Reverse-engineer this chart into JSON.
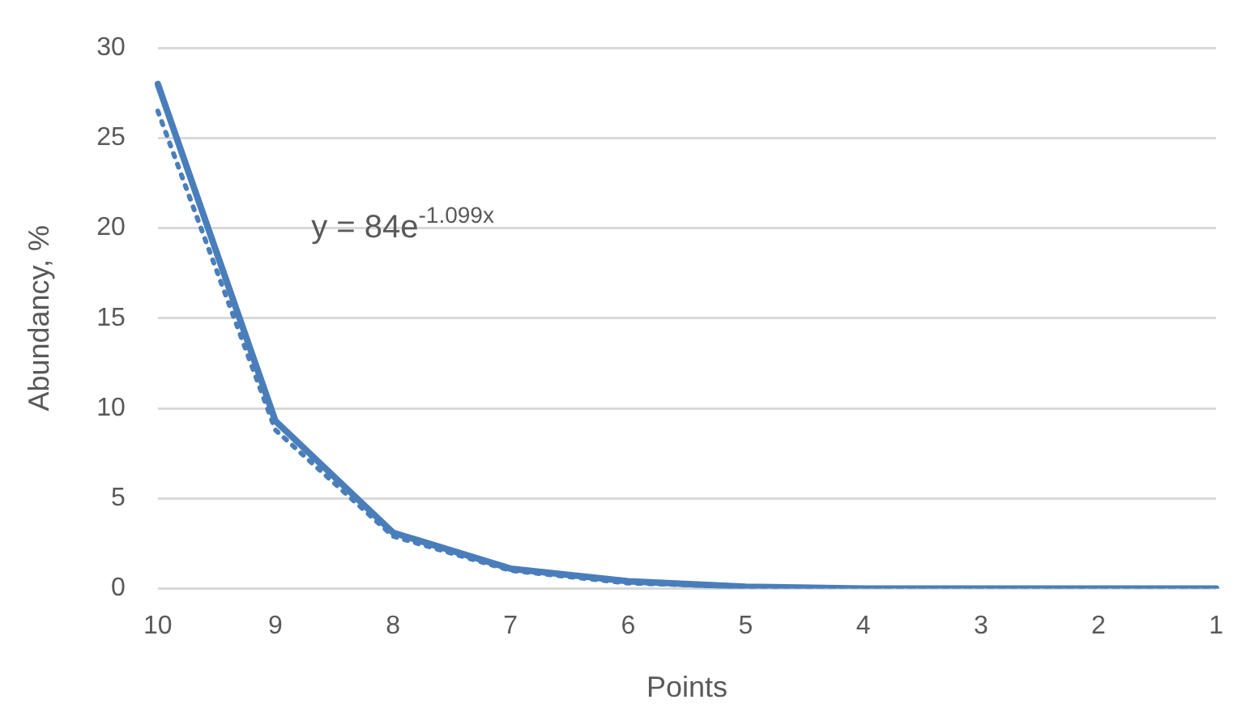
{
  "chart_data": {
    "type": "line",
    "xlabel": "Points",
    "ylabel": "Abundancy, %",
    "categories": [
      "10",
      "9",
      "8",
      "7",
      "6",
      "5",
      "4",
      "3",
      "2",
      "1"
    ],
    "series": [
      {
        "color": "#4a7ebb",
        "values": [
          28,
          9.3,
          3.1,
          1.1,
          0.4,
          0.1,
          0,
          0,
          0,
          0
        ],
        "line_style": "solid"
      },
      {
        "type": "line",
        "color": "#4a7ebb",
        "values": [
          26.5,
          8.8,
          2.9,
          1,
          0.3,
          0.1,
          0,
          0,
          0,
          0
        ],
        "line_style": "dotted"
      }
    ],
    "ylim": [
      0,
      30
    ],
    "yticks": [
      0,
      5,
      10,
      15,
      20,
      25,
      30
    ],
    "grid": "y",
    "legend": false,
    "marker": "none",
    "annotations": [
      "y = 84e$^{-1.099x}$"
    ]
  }
}
